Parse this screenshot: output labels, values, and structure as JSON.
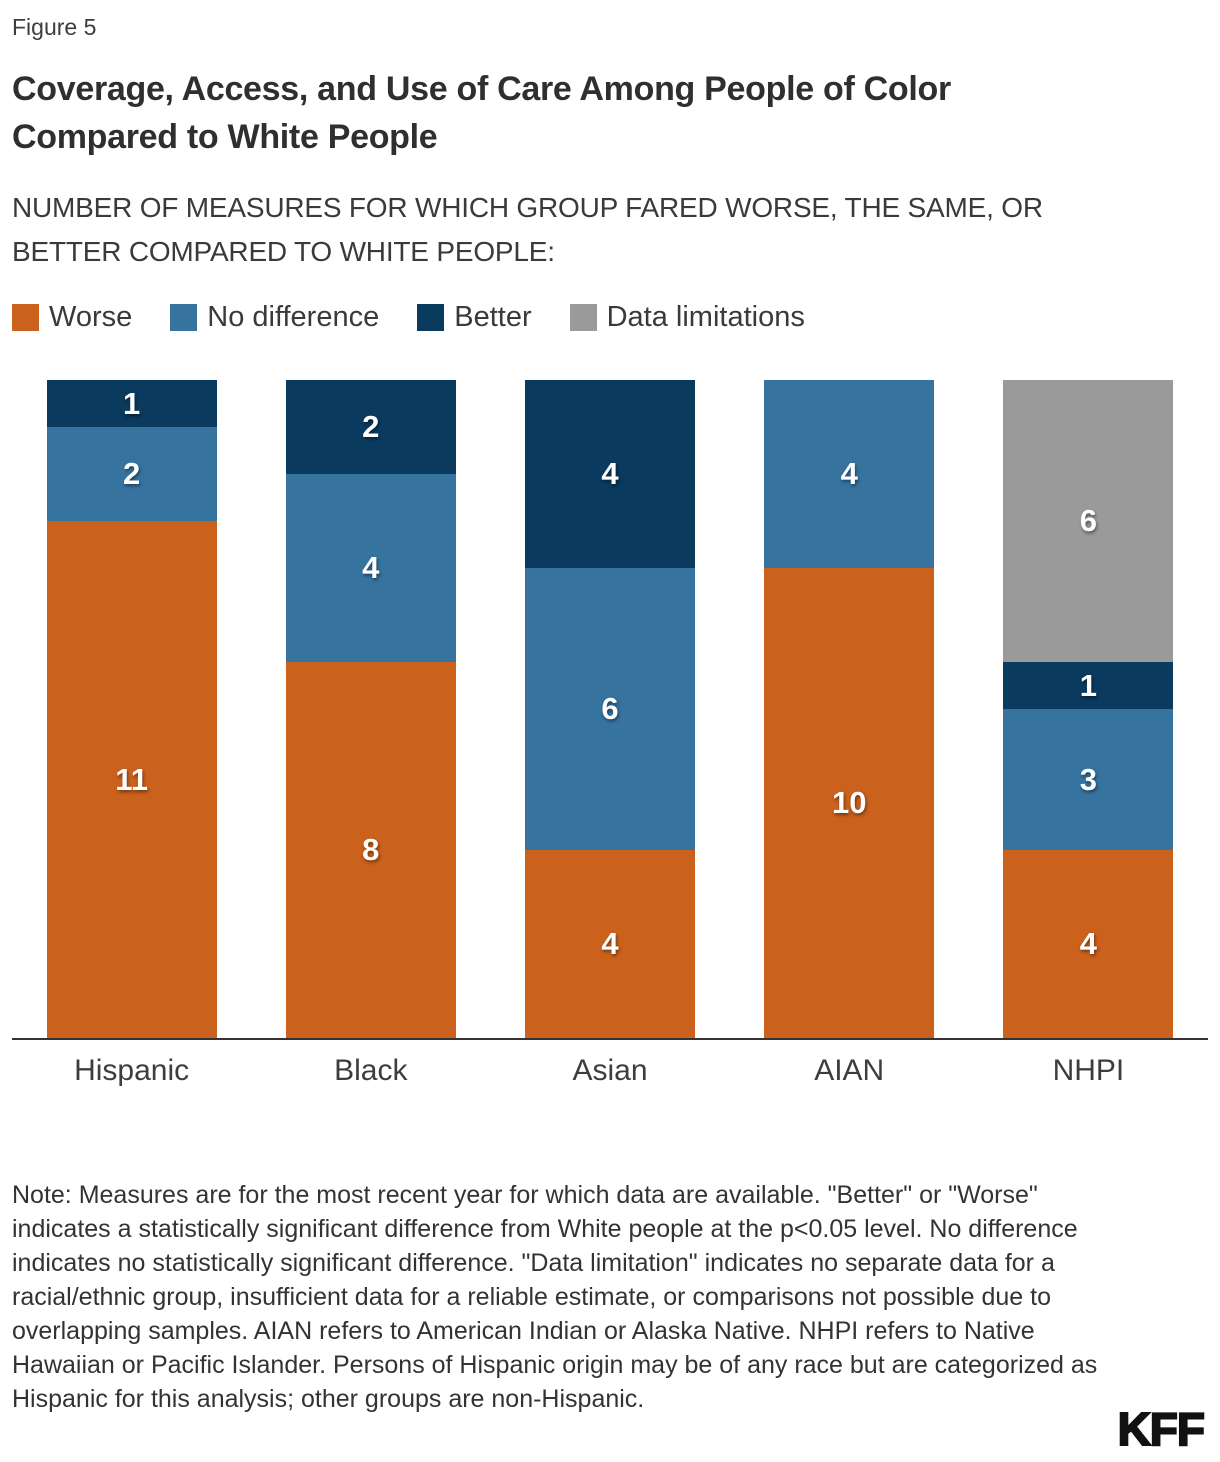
{
  "figure_label": "Figure 5",
  "title": {
    "line1": "Coverage, Access, and Use of Care Among People of Color",
    "line2": "Compared to White People"
  },
  "subtitle": {
    "line1": "NUMBER OF MEASURES FOR WHICH GROUP FARED WORSE, THE SAME, OR",
    "line2": "BETTER COMPARED TO WHITE PEOPLE:"
  },
  "legend": [
    {
      "label": "Worse",
      "color": "#CA611C"
    },
    {
      "label": "No difference",
      "color": "#36739F"
    },
    {
      "label": "Better",
      "color": "#0A3A5E"
    },
    {
      "label": "Data limitations",
      "color": "#9A9A9A"
    }
  ],
  "chart_data": {
    "type": "bar",
    "stacked": true,
    "categories": [
      "Hispanic",
      "Black",
      "Asian",
      "AIAN",
      "NHPI"
    ],
    "series": [
      {
        "name": "Worse",
        "color": "#CA611C",
        "values": [
          11,
          8,
          4,
          10,
          4
        ]
      },
      {
        "name": "No difference",
        "color": "#36739F",
        "values": [
          2,
          4,
          6,
          4,
          3
        ]
      },
      {
        "name": "Better",
        "color": "#0A3A5E",
        "values": [
          1,
          2,
          4,
          0,
          1
        ]
      },
      {
        "name": "Data limitations",
        "color": "#9A9A9A",
        "values": [
          0,
          0,
          0,
          0,
          6
        ]
      }
    ],
    "stack_order_bottom_to_top": [
      "Worse",
      "No difference",
      "Better",
      "Data limitations"
    ],
    "total_per_bar": 14,
    "ylim": [
      0,
      14
    ],
    "value_labels_shown": true,
    "grid": false,
    "legend_position": "top",
    "title": "Coverage, Access, and Use of Care Among People of Color Compared to White People",
    "xlabel": "",
    "ylabel": ""
  },
  "note": "Note: Measures are for the most recent year for which data are available. \"Better\" or \"Worse\" indicates a statistically significant difference from White people at the p<0.05 level. No difference indicates no statistically significant difference. \"Data limitation\" indicates no separate data for a racial/ethnic group, insufficient data for a reliable estimate, or comparisons not possible due to overlapping samples. AIAN refers to American Indian or Alaska Native. NHPI refers to Native Hawaiian or Pacific Islander. Persons of Hispanic origin may be of any race but are categorized as Hispanic for this analysis; other groups are non-Hispanic.",
  "logo": "KFF",
  "colors": {
    "background": "#FFFFFF",
    "text_dark": "#2F2F2F",
    "axis": "#333333",
    "bar_label_text": "#FFFFFF"
  }
}
